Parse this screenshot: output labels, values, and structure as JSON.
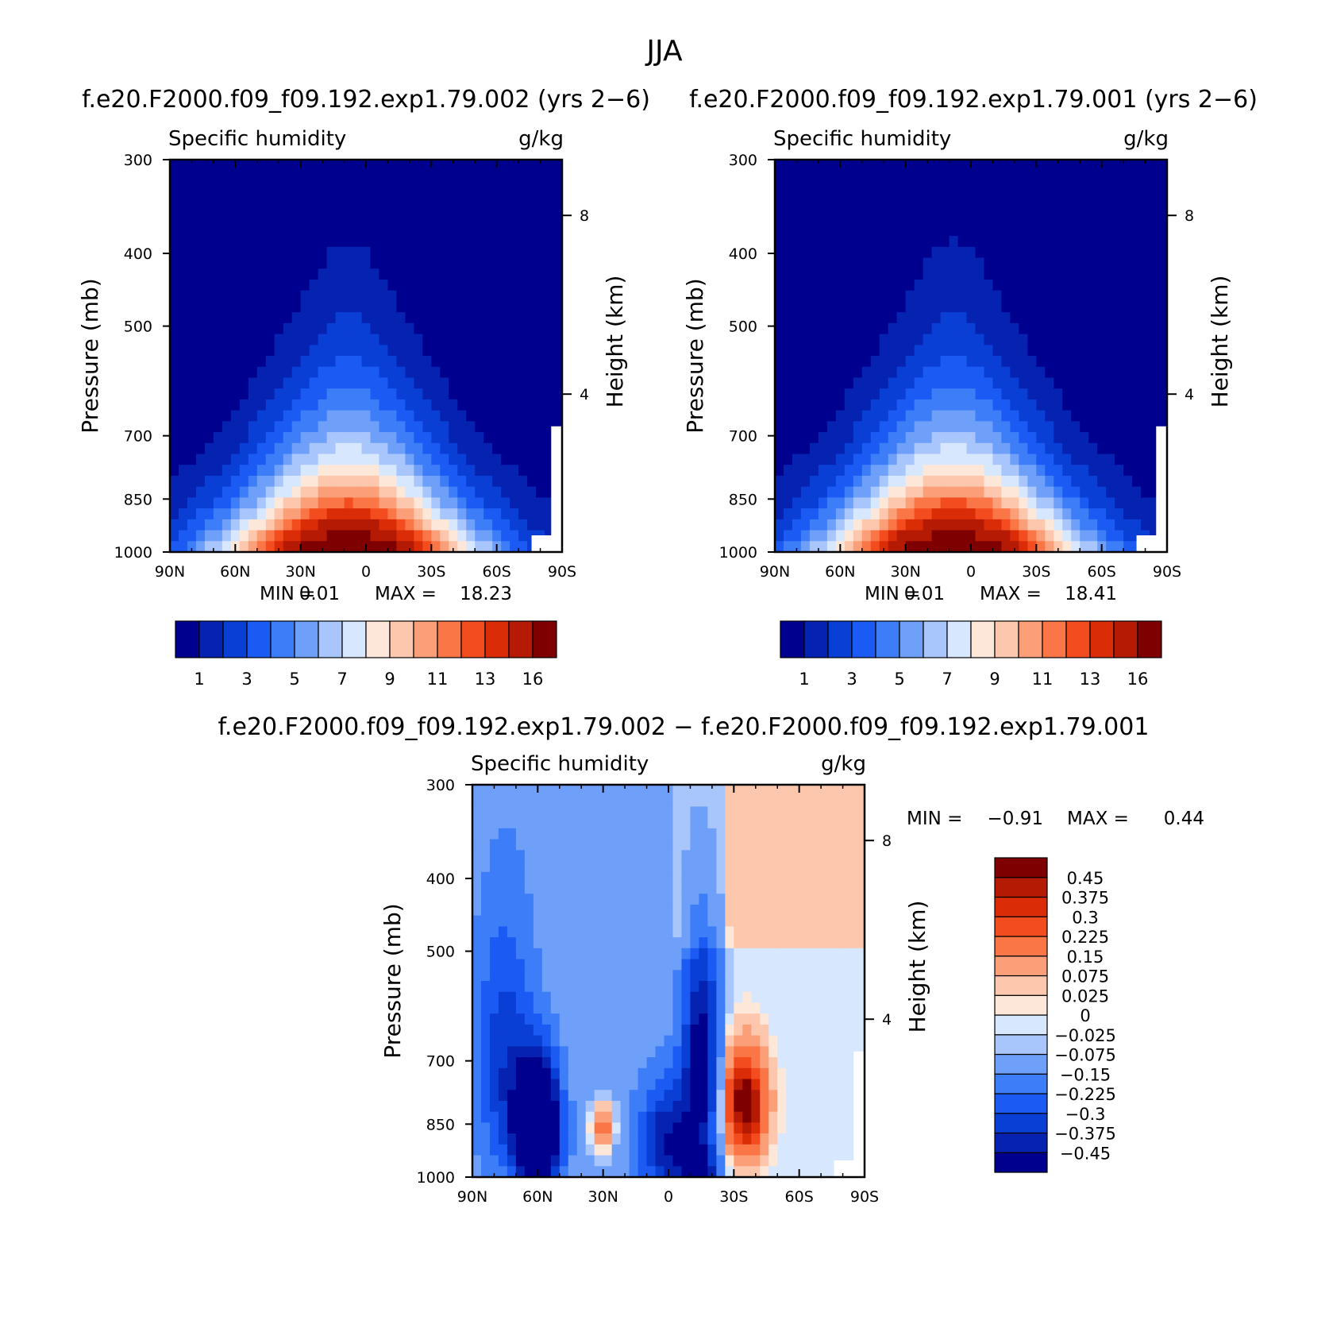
{
  "figure": {
    "title": "JJA"
  },
  "chart_data": [
    {
      "type": "heatmap",
      "case_title": "f.e20.F2000.f09_f09.192.exp1.79.002 (yrs 2−6)",
      "title": "Specific humidity",
      "units": "g/kg",
      "xlabel": "",
      "ylabel": "Pressure (mb)",
      "ylabel_right": "Height (km)",
      "x_ticks": [
        "90N",
        "60N",
        "30N",
        "0",
        "30S",
        "60S",
        "90S"
      ],
      "y_ticks": [
        "300",
        "400",
        "500",
        "700",
        "850",
        "1000"
      ],
      "y_right_ticks": [
        "8",
        "4"
      ],
      "xlim": [
        90,
        -90
      ],
      "ylim": [
        1000,
        300
      ],
      "y_scale": "log",
      "min_label": "MIN =",
      "min_value": "0.01",
      "max_label": "MAX =",
      "max_value": "18.23",
      "peak": {
        "lat": 10,
        "p": 1000,
        "value": 18.23
      },
      "colorbar": {
        "orientation": "horizontal",
        "labels": [
          "1",
          "3",
          "5",
          "7",
          "9",
          "11",
          "13",
          "16"
        ],
        "levels": [
          1,
          2,
          3,
          4,
          5,
          6,
          7,
          8,
          9,
          10,
          11,
          12,
          13,
          14,
          16
        ],
        "colors": [
          "#00008f",
          "#0522b1",
          "#0a3fd6",
          "#1c5bf3",
          "#3d7df8",
          "#6e9ff9",
          "#a8c6fb",
          "#d7e7fd",
          "#fde7d8",
          "#fcc7ad",
          "#fb9f79",
          "#fb7647",
          "#f34d1f",
          "#db2c08",
          "#b41a04",
          "#7f0000"
        ]
      }
    },
    {
      "type": "heatmap",
      "case_title": "f.e20.F2000.f09_f09.192.exp1.79.001 (yrs 2−6)",
      "title": "Specific humidity",
      "units": "g/kg",
      "xlabel": "",
      "ylabel": "Pressure (mb)",
      "ylabel_right": "Height (km)",
      "x_ticks": [
        "90N",
        "60N",
        "30N",
        "0",
        "30S",
        "60S",
        "90S"
      ],
      "y_ticks": [
        "300",
        "400",
        "500",
        "700",
        "850",
        "1000"
      ],
      "y_right_ticks": [
        "8",
        "4"
      ],
      "xlim": [
        90,
        -90
      ],
      "ylim": [
        1000,
        300
      ],
      "y_scale": "log",
      "min_label": "MIN =",
      "min_value": "0.01",
      "max_label": "MAX =",
      "max_value": "18.41",
      "peak": {
        "lat": 10,
        "p": 1000,
        "value": 18.41
      },
      "colorbar": {
        "orientation": "horizontal",
        "labels": [
          "1",
          "3",
          "5",
          "7",
          "9",
          "11",
          "13",
          "16"
        ],
        "levels": [
          1,
          2,
          3,
          4,
          5,
          6,
          7,
          8,
          9,
          10,
          11,
          12,
          13,
          14,
          16
        ],
        "colors": [
          "#00008f",
          "#0522b1",
          "#0a3fd6",
          "#1c5bf3",
          "#3d7df8",
          "#6e9ff9",
          "#a8c6fb",
          "#d7e7fd",
          "#fde7d8",
          "#fcc7ad",
          "#fb9f79",
          "#fb7647",
          "#f34d1f",
          "#db2c08",
          "#b41a04",
          "#7f0000"
        ]
      }
    },
    {
      "type": "heatmap",
      "case_title": "f.e20.F2000.f09_f09.192.exp1.79.002 − f.e20.F2000.f09_f09.192.exp1.79.001",
      "title": "Specific humidity",
      "units": "g/kg",
      "xlabel": "",
      "ylabel": "Pressure (mb)",
      "ylabel_right": "Height (km)",
      "x_ticks": [
        "90N",
        "60N",
        "30N",
        "0",
        "30S",
        "60S",
        "90S"
      ],
      "y_ticks": [
        "300",
        "400",
        "500",
        "700",
        "850",
        "1000"
      ],
      "y_right_ticks": [
        "8",
        "4"
      ],
      "xlim": [
        90,
        -90
      ],
      "ylim": [
        1000,
        300
      ],
      "y_scale": "log",
      "min_label": "MIN =",
      "min_value": "−0.91",
      "max_label": "MAX =",
      "max_value": "0.44",
      "features": [
        {
          "lat": 60,
          "p": 860,
          "value": -0.91
        },
        {
          "lat": 30,
          "p": 860,
          "value": 0.1
        },
        {
          "lat": -15,
          "p": 690,
          "value": -0.45
        },
        {
          "lat": -35,
          "p": 800,
          "value": 0.44
        }
      ],
      "colorbar": {
        "orientation": "vertical",
        "labels": [
          "0.45",
          "0.375",
          "0.3",
          "0.225",
          "0.15",
          "0.075",
          "0.025",
          "0",
          "−0.025",
          "−0.075",
          "−0.15",
          "−0.225",
          "−0.3",
          "−0.375",
          "−0.45"
        ],
        "levels": [
          -0.45,
          -0.375,
          -0.3,
          -0.225,
          -0.15,
          -0.075,
          -0.025,
          0,
          0.025,
          0.075,
          0.15,
          0.225,
          0.3,
          0.375,
          0.45
        ],
        "colors": [
          "#00008f",
          "#0522b1",
          "#0a3fd6",
          "#1c5bf3",
          "#3d7df8",
          "#6e9ff9",
          "#a8c6fb",
          "#d7e7fd",
          "#fde7d8",
          "#fcc7ad",
          "#fb9f79",
          "#fb7647",
          "#f34d1f",
          "#db2c08",
          "#b41a04",
          "#7f0000"
        ]
      }
    }
  ]
}
